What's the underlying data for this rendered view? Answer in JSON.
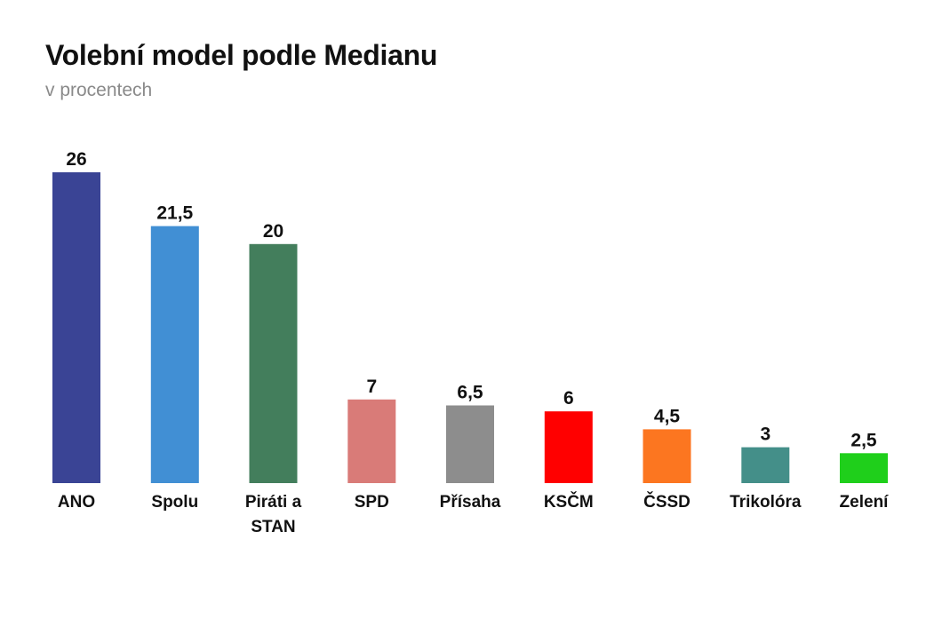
{
  "chart_data": {
    "type": "bar",
    "title": "Volební model podle Medianu",
    "subtitle": "v procentech",
    "categories": [
      "ANO",
      "Spolu",
      "Piráti a STAN",
      "SPD",
      "Přísaha",
      "KSČM",
      "ČSSD",
      "Trikolóra",
      "Zelení"
    ],
    "category_lines": [
      [
        "ANO"
      ],
      [
        "Spolu"
      ],
      [
        "Piráti a",
        "STAN"
      ],
      [
        "SPD"
      ],
      [
        "Přísaha"
      ],
      [
        "KSČM"
      ],
      [
        "ČSSD"
      ],
      [
        "Trikolóra"
      ],
      [
        "Zelení"
      ]
    ],
    "values": [
      26,
      21.5,
      20,
      7,
      6.5,
      6,
      4.5,
      3,
      2.5
    ],
    "value_labels": [
      "26",
      "21,5",
      "20",
      "7",
      "6,5",
      "6",
      "4,5",
      "3",
      "2,5"
    ],
    "colors": [
      "#3a4495",
      "#418fd4",
      "#437e5c",
      "#d97b78",
      "#8d8d8d",
      "#ff0000",
      "#fc7620",
      "#448f89",
      "#1fcf1b"
    ],
    "ylim": [
      0,
      26
    ],
    "grid": false,
    "legend": "none"
  }
}
